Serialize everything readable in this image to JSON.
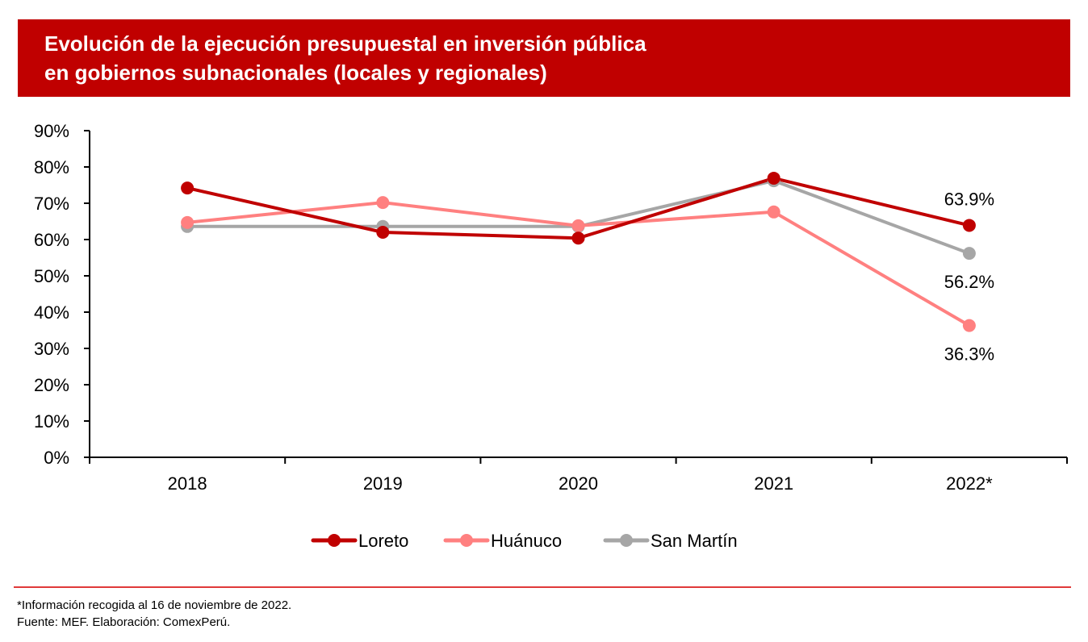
{
  "title": {
    "lines": [
      "Evolución de la ejecución presupuestal en inversión pública",
      "en gobiernos subnacionales (locales y regionales)"
    ],
    "background_color": "#c00000"
  },
  "chart_data": {
    "type": "line",
    "title": "Evolución de la ejecución presupuestal en inversión pública en gobiernos subnacionales (locales y regionales)",
    "xlabel": "",
    "ylabel": "",
    "categories": [
      "2018",
      "2019",
      "2020",
      "2021",
      "2022*"
    ],
    "ylim": [
      0,
      90
    ],
    "y_ticks": [
      0,
      10,
      20,
      30,
      40,
      50,
      60,
      70,
      80,
      90
    ],
    "y_tick_labels": [
      "0%",
      "10%",
      "20%",
      "30%",
      "40%",
      "50%",
      "60%",
      "70%",
      "80%",
      "90%"
    ],
    "grid": false,
    "legend_position": "bottom",
    "series": [
      {
        "name": "Loreto",
        "color": "#c00000",
        "values": [
          74.2,
          62.0,
          60.4,
          76.9,
          63.9
        ]
      },
      {
        "name": "Huánuco",
        "color": "#ff8080",
        "values": [
          64.7,
          70.2,
          63.8,
          67.6,
          36.3
        ]
      },
      {
        "name": "San Martín",
        "color": "#a6a6a6",
        "values": [
          63.6,
          63.6,
          63.6,
          76.2,
          56.2
        ]
      }
    ],
    "annotations": [
      {
        "series": "Loreto",
        "category": "2022*",
        "text": "63.9%",
        "placement": "above"
      },
      {
        "series": "San Martín",
        "category": "2022*",
        "text": "56.2%",
        "placement": "below"
      },
      {
        "series": "Huánuco",
        "category": "2022*",
        "text": "36.3%",
        "placement": "below"
      }
    ]
  },
  "footer": {
    "note": "*Información recogida al 16 de noviembre de 2022.",
    "source": "Fuente: MEF. Elaboración: ComexPerú.",
    "rule_color": "#e03a3a"
  }
}
